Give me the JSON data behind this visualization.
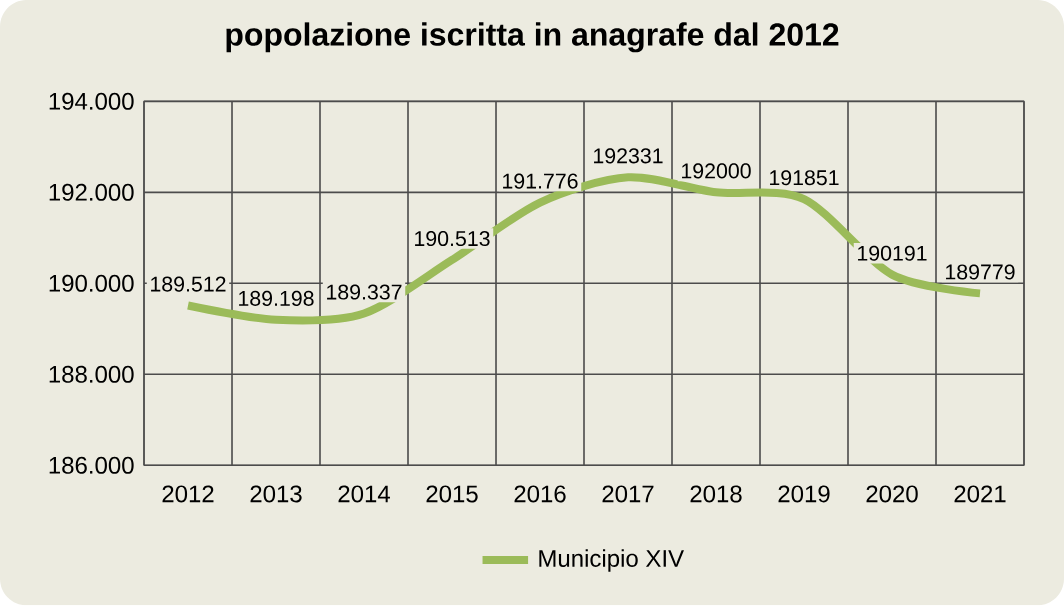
{
  "chart_data": {
    "type": "line",
    "title": "popolazione iscritta in anagrafe dal 2012",
    "categories": [
      "2012",
      "2013",
      "2014",
      "2015",
      "2016",
      "2017",
      "2018",
      "2019",
      "2020",
      "2021"
    ],
    "series": [
      {
        "name": "Municipio XIV",
        "color": "#9bbb59",
        "values": [
          189512,
          189198,
          189337,
          190513,
          191776,
          192331,
          192000,
          191851,
          190191,
          189779
        ],
        "value_labels": [
          "189.512",
          "189.198",
          "189.337",
          "190.513",
          "191.776",
          "192331",
          "192000",
          "191851",
          "190191",
          "189779"
        ]
      }
    ],
    "ylim": [
      186000,
      194000
    ],
    "yticks": [
      {
        "value": 186000,
        "label": "186.000"
      },
      {
        "value": 188000,
        "label": "188.000"
      },
      {
        "value": 190000,
        "label": "190.000"
      },
      {
        "value": 192000,
        "label": "192.000"
      },
      {
        "value": 194000,
        "label": "194.000"
      }
    ],
    "grid": true,
    "legend": "bottom",
    "marker": "none",
    "line_style": "solid"
  }
}
